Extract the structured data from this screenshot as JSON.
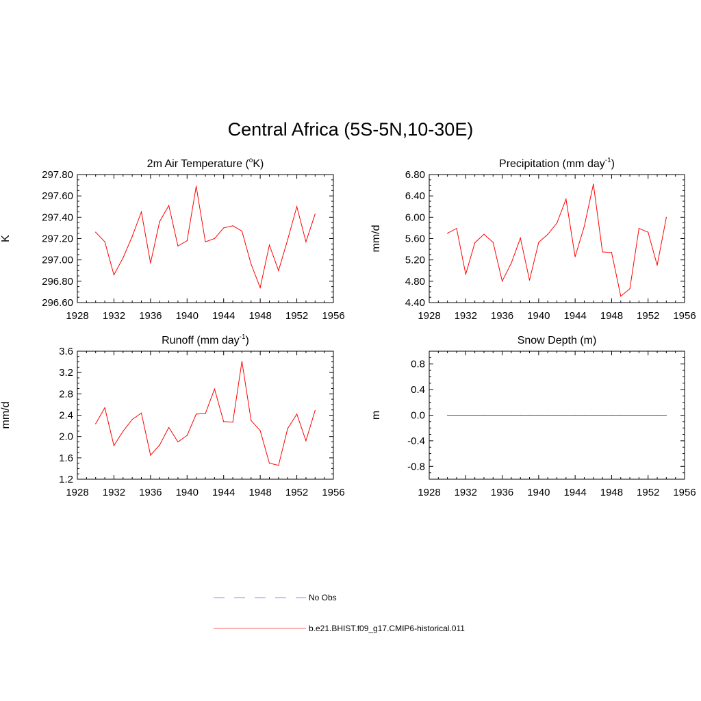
{
  "title": "Central Africa (5S-5N,10-30E)",
  "legend": [
    {
      "label": "No Obs",
      "color": "#a0a0ff",
      "dash": true
    },
    {
      "label": "b.e21.BHIST.f09_g17.CMIP6-historical.011",
      "color": "#ff8080",
      "dash": false
    }
  ],
  "chart_data": [
    {
      "type": "line",
      "title": "2m Air Temperature (°K)",
      "title_parts": [
        "2m Air Temperature (",
        "o",
        "K)"
      ],
      "ylabel": "K",
      "xlim": [
        1928,
        1956
      ],
      "xticks": [
        1928,
        1932,
        1936,
        1940,
        1944,
        1948,
        1952,
        1956
      ],
      "ylim": [
        296.6,
        297.8
      ],
      "yticks": [
        "296.60",
        "296.80",
        "297.00",
        "297.20",
        "297.40",
        "297.60",
        "297.80"
      ],
      "ytick_values": [
        296.6,
        296.8,
        297.0,
        297.2,
        297.4,
        297.6,
        297.8
      ],
      "color": "#ff0000",
      "x": [
        1930,
        1931,
        1932,
        1933,
        1934,
        1935,
        1936,
        1937,
        1938,
        1939,
        1940,
        1941,
        1942,
        1943,
        1944,
        1945,
        1946,
        1947,
        1948,
        1949,
        1950,
        1951,
        1952,
        1953,
        1954
      ],
      "y": [
        297.26,
        297.17,
        296.86,
        297.02,
        297.22,
        297.45,
        296.97,
        297.36,
        297.51,
        297.13,
        297.18,
        297.69,
        297.17,
        297.2,
        297.3,
        297.32,
        297.27,
        296.96,
        296.74,
        297.14,
        296.9,
        297.19,
        297.5,
        297.17,
        297.43
      ]
    },
    {
      "type": "line",
      "title": "Precipitation (mm day-1)",
      "title_parts": [
        "Precipitation (mm day",
        "-1",
        ")"
      ],
      "ylabel": "mm/d",
      "xlim": [
        1928,
        1956
      ],
      "xticks": [
        1928,
        1932,
        1936,
        1940,
        1944,
        1948,
        1952,
        1956
      ],
      "ylim": [
        4.4,
        6.8
      ],
      "yticks": [
        "4.40",
        "4.80",
        "5.20",
        "5.60",
        "6.00",
        "6.40",
        "6.80"
      ],
      "ytick_values": [
        4.4,
        4.8,
        5.2,
        5.6,
        6.0,
        6.4,
        6.8
      ],
      "color": "#ff0000",
      "x": [
        1930,
        1931,
        1932,
        1933,
        1934,
        1935,
        1936,
        1937,
        1938,
        1939,
        1940,
        1941,
        1942,
        1943,
        1944,
        1945,
        1946,
        1947,
        1948,
        1949,
        1950,
        1951,
        1952,
        1953,
        1954
      ],
      "y": [
        5.7,
        5.79,
        4.93,
        5.52,
        5.68,
        5.53,
        4.8,
        5.14,
        5.61,
        4.82,
        5.53,
        5.68,
        5.89,
        6.34,
        5.26,
        5.83,
        6.62,
        5.35,
        5.34,
        4.52,
        4.66,
        5.79,
        5.72,
        5.1,
        6.0
      ]
    },
    {
      "type": "line",
      "title": "Runoff (mm day-1)",
      "title_parts": [
        "Runoff (mm day",
        "-1",
        ")"
      ],
      "ylabel": "mm/d",
      "xlim": [
        1928,
        1956
      ],
      "xticks": [
        1928,
        1932,
        1936,
        1940,
        1944,
        1948,
        1952,
        1956
      ],
      "ylim": [
        1.2,
        3.6
      ],
      "yticks": [
        "1.2",
        "1.6",
        "2.0",
        "2.4",
        "2.8",
        "3.2",
        "3.6"
      ],
      "ytick_values": [
        1.2,
        1.6,
        2.0,
        2.4,
        2.8,
        3.2,
        3.6
      ],
      "color": "#ff0000",
      "x": [
        1930,
        1931,
        1932,
        1933,
        1934,
        1935,
        1936,
        1937,
        1938,
        1939,
        1940,
        1941,
        1942,
        1943,
        1944,
        1945,
        1946,
        1947,
        1948,
        1949,
        1950,
        1951,
        1952,
        1953,
        1954
      ],
      "y": [
        2.24,
        2.54,
        1.83,
        2.1,
        2.32,
        2.44,
        1.65,
        1.84,
        2.17,
        1.9,
        2.02,
        2.42,
        2.43,
        2.89,
        2.28,
        2.27,
        3.41,
        2.3,
        2.11,
        1.5,
        1.46,
        2.15,
        2.42,
        1.92,
        2.49
      ]
    },
    {
      "type": "line",
      "title": "Snow Depth (m)",
      "title_parts": [
        "Snow Depth (m)",
        "",
        ""
      ],
      "ylabel": "m",
      "xlim": [
        1928,
        1956
      ],
      "xticks": [
        1928,
        1932,
        1936,
        1940,
        1944,
        1948,
        1952,
        1956
      ],
      "ylim": [
        -1.0,
        1.0
      ],
      "yticks": [
        "-0.8",
        "-0.4",
        "0.0",
        "0.4",
        "0.8"
      ],
      "ytick_values": [
        -0.8,
        -0.4,
        0.0,
        0.4,
        0.8
      ],
      "color": "#ff0000",
      "x": [
        1930,
        1931,
        1932,
        1933,
        1934,
        1935,
        1936,
        1937,
        1938,
        1939,
        1940,
        1941,
        1942,
        1943,
        1944,
        1945,
        1946,
        1947,
        1948,
        1949,
        1950,
        1951,
        1952,
        1953,
        1954
      ],
      "y": [
        0,
        0,
        0,
        0,
        0,
        0,
        0,
        0,
        0,
        0,
        0,
        0,
        0,
        0,
        0,
        0,
        0,
        0,
        0,
        0,
        0,
        0,
        0,
        0,
        0
      ]
    }
  ]
}
